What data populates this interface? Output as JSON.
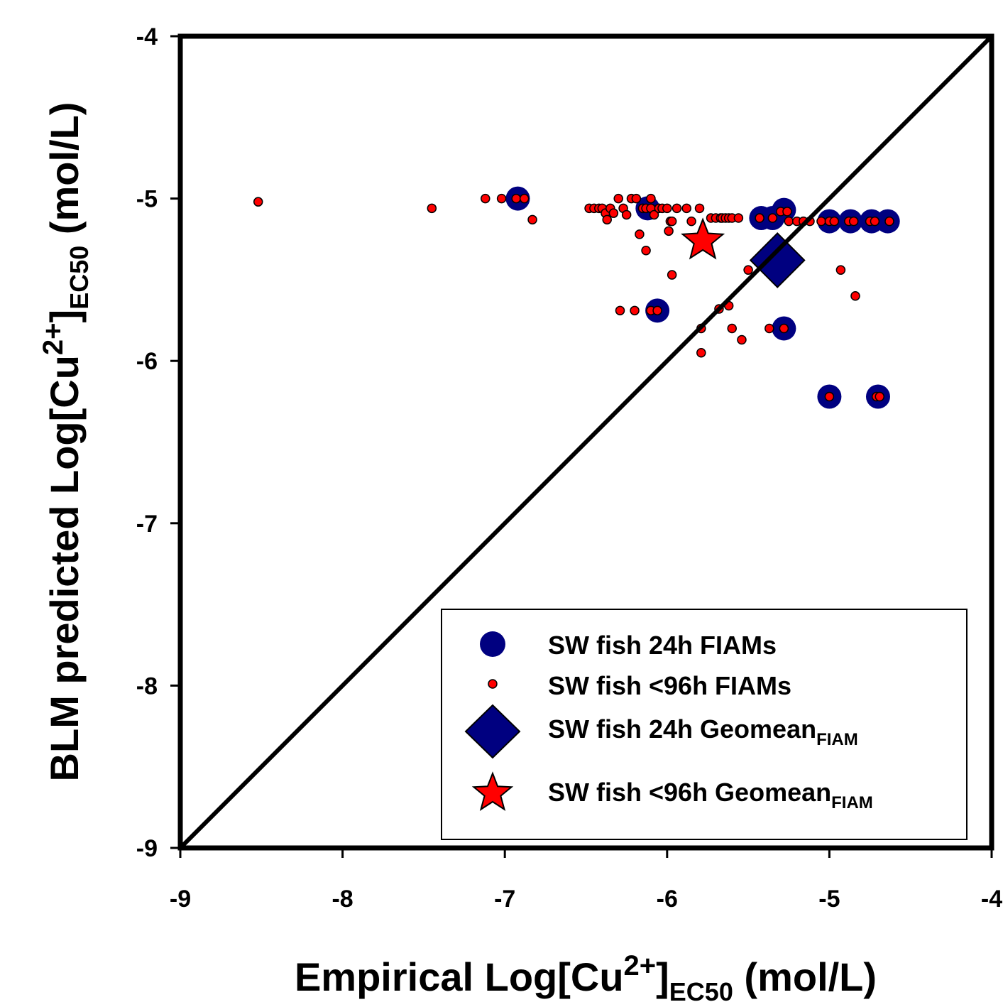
{
  "colors": {
    "navy": "#000080",
    "red": "#ff0000",
    "black": "#000000"
  },
  "chart_data": {
    "type": "scatter",
    "xlim": [
      -9,
      -4
    ],
    "ylim": [
      -9,
      -4
    ],
    "xticks": [
      "-9",
      "-8",
      "-7",
      "-6",
      "-5",
      "-4"
    ],
    "yticks": [
      "-9",
      "-8",
      "-7",
      "-6",
      "-5",
      "-4"
    ],
    "x_tick_values": [
      -9,
      -8,
      -7,
      -6,
      -5,
      -4
    ],
    "y_tick_values": [
      -9,
      -8,
      -7,
      -6,
      -5,
      -4
    ],
    "xlabel": {
      "main": "Empirical Log[Cu",
      "sup": "2+",
      "close": "]",
      "sub": "EC50",
      "unit": " (mol/L)"
    },
    "ylabel": {
      "main": "BLM predicted Log[Cu",
      "sup": "2+",
      "close": "]",
      "sub": "EC50",
      "unit": " (mol/L)"
    },
    "reference_line": {
      "type": "1:1",
      "from": [
        -9,
        -9
      ],
      "to": [
        -4,
        -4
      ]
    },
    "grid": false,
    "legend_position": "bottom-right",
    "legend": [
      {
        "label": "SW fish 24h FIAMs",
        "sub": "",
        "marker": "circle-large",
        "color": "#000080"
      },
      {
        "label": "SW fish <96h FIAMs",
        "sub": "",
        "marker": "circle-small",
        "color": "#ff0000"
      },
      {
        "label": "SW fish 24h Geomean",
        "sub": "FIAM",
        "marker": "diamond",
        "color": "#000080"
      },
      {
        "label": "SW fish <96h Geomean",
        "sub": "FIAM",
        "marker": "star",
        "color": "#ff0000"
      }
    ],
    "series": [
      {
        "name": "SW fish 24h FIAMs",
        "marker": "circle-large",
        "color": "#000080",
        "points": [
          [
            -6.92,
            -5.0
          ],
          [
            -6.12,
            -5.06
          ],
          [
            -6.06,
            -5.69
          ],
          [
            -5.42,
            -5.12
          ],
          [
            -5.35,
            -5.12
          ],
          [
            -5.28,
            -5.07
          ],
          [
            -5.28,
            -5.8
          ],
          [
            -5.0,
            -5.14
          ],
          [
            -4.87,
            -5.14
          ],
          [
            -4.74,
            -5.14
          ],
          [
            -4.64,
            -5.14
          ],
          [
            -5.0,
            -6.22
          ],
          [
            -4.7,
            -6.22
          ]
        ]
      },
      {
        "name": "SW fish <96h FIAMs",
        "marker": "circle-small",
        "color": "#ff0000",
        "points": [
          [
            -8.52,
            -5.02
          ],
          [
            -7.45,
            -5.06
          ],
          [
            -7.12,
            -5.0
          ],
          [
            -7.02,
            -5.0
          ],
          [
            -6.93,
            -5.0
          ],
          [
            -6.88,
            -5.0
          ],
          [
            -6.83,
            -5.13
          ],
          [
            -6.48,
            -5.06
          ],
          [
            -6.45,
            -5.06
          ],
          [
            -6.42,
            -5.06
          ],
          [
            -6.4,
            -5.06
          ],
          [
            -6.38,
            -5.09
          ],
          [
            -6.37,
            -5.13
          ],
          [
            -6.35,
            -5.06
          ],
          [
            -6.33,
            -5.09
          ],
          [
            -6.3,
            -5.0
          ],
          [
            -6.27,
            -5.06
          ],
          [
            -6.25,
            -5.1
          ],
          [
            -6.22,
            -5.0
          ],
          [
            -6.19,
            -5.0
          ],
          [
            -6.17,
            -5.22
          ],
          [
            -6.15,
            -5.06
          ],
          [
            -6.13,
            -5.06
          ],
          [
            -6.1,
            -5.0
          ],
          [
            -6.1,
            -5.06
          ],
          [
            -6.08,
            -5.1
          ],
          [
            -6.05,
            -5.06
          ],
          [
            -6.03,
            -5.06
          ],
          [
            -6.0,
            -5.06
          ],
          [
            -5.98,
            -5.14
          ],
          [
            -5.97,
            -5.14
          ],
          [
            -5.94,
            -5.06
          ],
          [
            -5.88,
            -5.06
          ],
          [
            -5.85,
            -5.14
          ],
          [
            -5.8,
            -5.06
          ],
          [
            -5.73,
            -5.12
          ],
          [
            -5.7,
            -5.12
          ],
          [
            -5.67,
            -5.12
          ],
          [
            -5.66,
            -5.12
          ],
          [
            -5.64,
            -5.12
          ],
          [
            -5.62,
            -5.12
          ],
          [
            -5.6,
            -5.12
          ],
          [
            -5.56,
            -5.12
          ],
          [
            -5.99,
            -5.2
          ],
          [
            -6.13,
            -5.32
          ],
          [
            -5.97,
            -5.47
          ],
          [
            -5.5,
            -5.44
          ],
          [
            -6.29,
            -5.69
          ],
          [
            -6.2,
            -5.69
          ],
          [
            -6.1,
            -5.69
          ],
          [
            -6.06,
            -5.69
          ],
          [
            -5.68,
            -5.68
          ],
          [
            -5.62,
            -5.66
          ],
          [
            -5.79,
            -5.8
          ],
          [
            -5.6,
            -5.8
          ],
          [
            -5.54,
            -5.87
          ],
          [
            -5.79,
            -5.95
          ],
          [
            -5.37,
            -5.8
          ],
          [
            -5.28,
            -5.8
          ],
          [
            -5.43,
            -5.12
          ],
          [
            -5.35,
            -5.12
          ],
          [
            -5.3,
            -5.08
          ],
          [
            -5.26,
            -5.08
          ],
          [
            -5.25,
            -5.14
          ],
          [
            -5.2,
            -5.14
          ],
          [
            -5.16,
            -5.14
          ],
          [
            -5.12,
            -5.14
          ],
          [
            -5.05,
            -5.14
          ],
          [
            -5.0,
            -5.14
          ],
          [
            -4.97,
            -5.14
          ],
          [
            -4.88,
            -5.14
          ],
          [
            -4.85,
            -5.14
          ],
          [
            -4.75,
            -5.14
          ],
          [
            -4.72,
            -5.14
          ],
          [
            -4.63,
            -5.14
          ],
          [
            -4.93,
            -5.44
          ],
          [
            -4.84,
            -5.6
          ],
          [
            -5.0,
            -6.22
          ],
          [
            -4.71,
            -6.22
          ],
          [
            -4.69,
            -6.22
          ]
        ]
      },
      {
        "name": "SW fish 24h Geomean",
        "marker": "diamond",
        "color": "#000080",
        "points": [
          [
            -5.32,
            -5.38
          ]
        ]
      },
      {
        "name": "SW fish <96h Geomean",
        "marker": "star",
        "color": "#ff0000",
        "points": [
          [
            -5.78,
            -5.26
          ]
        ]
      }
    ]
  }
}
